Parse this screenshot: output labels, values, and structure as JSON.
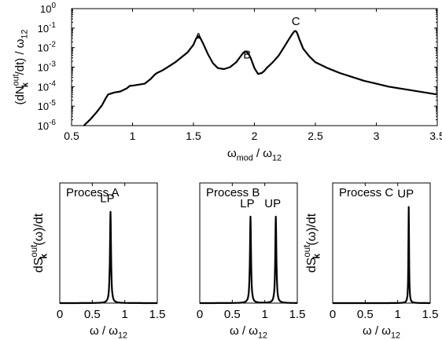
{
  "chart_data": [
    {
      "type": "line",
      "title": "",
      "ylabel": {
        "pre": "(dN",
        "sup": "out",
        "sub": "k",
        "post": "/dt) / ω",
        "post_sub": "12"
      },
      "xlabel": {
        "a": "ω",
        "a_sub": "mod",
        "mid": " / ω",
        "b_sub": "12"
      },
      "xlim": [
        0.5,
        3.5
      ],
      "ylim_log10": [
        -6,
        0
      ],
      "yscale": "log",
      "grid": false,
      "x_ticks": [
        0.5,
        1,
        1.5,
        2,
        2.5,
        3,
        3.5
      ],
      "x_tick_labels": [
        "0.5",
        "1",
        "1.5",
        "2",
        "2.5",
        "3",
        "3.5"
      ],
      "y_ticks_exp": [
        -6,
        -5,
        -4,
        -3,
        -2,
        -1,
        0
      ],
      "y_tick_base": "10",
      "annotations": [
        {
          "text": "A",
          "x": 1.54,
          "y_log10": -1.65
        },
        {
          "text": "B",
          "x": 1.94,
          "y_log10": -2.55
        },
        {
          "text": "C",
          "x": 2.34,
          "y_log10": -0.85
        }
      ],
      "series": [
        {
          "x": [
            0.6,
            0.65,
            0.7,
            0.75,
            0.78,
            0.8,
            0.85,
            0.9,
            0.95,
            0.98,
            1.0,
            1.05,
            1.1,
            1.15,
            1.18,
            1.2,
            1.25,
            1.3,
            1.35,
            1.4,
            1.45,
            1.5,
            1.52,
            1.54,
            1.56,
            1.58,
            1.62,
            1.66,
            1.7,
            1.75,
            1.8,
            1.85,
            1.88,
            1.91,
            1.93,
            1.95,
            1.97,
            2.0,
            2.03,
            2.06,
            2.08,
            2.1,
            2.15,
            2.2,
            2.25,
            2.28,
            2.31,
            2.33,
            2.34,
            2.35,
            2.37,
            2.4,
            2.45,
            2.5,
            2.6,
            2.7,
            2.8,
            2.9,
            3.0,
            3.1,
            3.2,
            3.3,
            3.4,
            3.5
          ],
          "y_log10": [
            -6.0,
            -5.7,
            -5.35,
            -4.95,
            -4.6,
            -4.4,
            -4.3,
            -4.25,
            -4.1,
            -3.95,
            -3.95,
            -3.9,
            -3.85,
            -3.6,
            -3.4,
            -3.3,
            -3.15,
            -2.95,
            -2.75,
            -2.5,
            -2.25,
            -1.85,
            -1.55,
            -1.4,
            -1.55,
            -1.8,
            -2.35,
            -2.8,
            -3.05,
            -3.1,
            -3.0,
            -2.75,
            -2.5,
            -2.25,
            -2.2,
            -2.3,
            -2.55,
            -3.05,
            -3.35,
            -3.3,
            -3.2,
            -3.05,
            -2.75,
            -2.4,
            -1.9,
            -1.6,
            -1.3,
            -1.15,
            -1.15,
            -1.25,
            -1.6,
            -2.05,
            -2.45,
            -2.75,
            -3.05,
            -3.3,
            -3.5,
            -3.7,
            -3.85,
            -4.0,
            -4.1,
            -4.2,
            -4.3,
            -4.4
          ]
        }
      ]
    },
    {
      "type": "line",
      "title": "Process A",
      "ylabel": {
        "pre": "dS",
        "sup": "out",
        "sub": "k",
        "post": "(ω)/dt"
      },
      "xlabel": {
        "a": "ω",
        "a_sub": "",
        "mid": " / ω",
        "b_sub": "12"
      },
      "xlim": [
        0,
        1.5
      ],
      "ylim": [
        0,
        1
      ],
      "x_ticks": [
        0,
        0.5,
        1,
        1.5
      ],
      "x_tick_labels": [
        "0",
        "0.5",
        "1",
        "1.5"
      ],
      "peaks": [
        {
          "x": 0.78,
          "height": 0.76,
          "width": 0.02,
          "label": "LP"
        }
      ]
    },
    {
      "type": "line",
      "title": "Process B",
      "ylabel": {
        "pre": "",
        "sup": "",
        "sub": "",
        "post": ""
      },
      "xlabel": {
        "a": "ω",
        "a_sub": "",
        "mid": " / ω",
        "b_sub": "12"
      },
      "xlim": [
        0,
        1.5
      ],
      "ylim": [
        0,
        1
      ],
      "x_ticks": [
        0,
        0.5,
        1,
        1.5
      ],
      "x_tick_labels": [
        "0",
        "0.5",
        "1",
        "1.5"
      ],
      "peaks": [
        {
          "x": 0.78,
          "height": 0.72,
          "width": 0.02,
          "label": "LP"
        },
        {
          "x": 1.17,
          "height": 0.72,
          "width": 0.02,
          "label": "UP"
        }
      ]
    },
    {
      "type": "line",
      "title": "Process C",
      "ylabel": {
        "pre": "dS",
        "sup": "out",
        "sub": "k",
        "post": "(ω)/dt"
      },
      "xlabel": {
        "a": "ω",
        "a_sub": "",
        "mid": " / ω",
        "b_sub": "12"
      },
      "xlim": [
        0,
        1.5
      ],
      "ylim": [
        0,
        1
      ],
      "x_ticks": [
        0,
        0.5,
        1,
        1.5
      ],
      "x_tick_labels": [
        "0",
        "0.5",
        "1",
        "1.5"
      ],
      "peaks": [
        {
          "x": 1.17,
          "height": 0.8,
          "width": 0.012,
          "label": "UP"
        }
      ]
    }
  ]
}
